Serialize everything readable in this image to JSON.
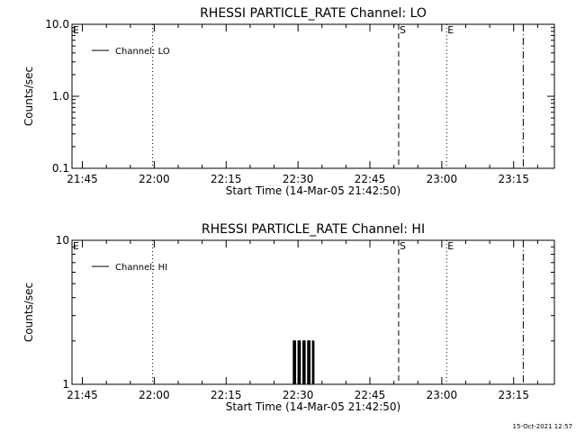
{
  "timestamp": "15-Oct-2021 12:57",
  "colors": {
    "background": "#ffffff",
    "foreground": "#000000"
  },
  "chart_data": [
    {
      "type": "line",
      "title": "RHESSI PARTICLE_RATE Channel: LO",
      "xlabel": "Start Time (14-Mar-05 21:42:50)",
      "ylabel": "Counts/sec",
      "y_scale": "log",
      "ylim": [
        0.1,
        10.0
      ],
      "xlim": [
        "21:42:50",
        "23:23:30"
      ],
      "x_ticks": [
        "21:45",
        "22:00",
        "22:15",
        "22:30",
        "22:45",
        "23:00",
        "23:15"
      ],
      "y_ticks": [
        "0.1",
        "1.0",
        "10.0"
      ],
      "legend": {
        "position": "top-left",
        "entries": [
          "Channel: LO"
        ]
      },
      "markers": [
        {
          "time": "21:42:50",
          "label": "E",
          "style": "solid"
        },
        {
          "time": "21:59:40",
          "label": "",
          "style": "dotted"
        },
        {
          "time": "22:51:00",
          "label": "S",
          "style": "dashed"
        },
        {
          "time": "23:01:00",
          "label": "E",
          "style": "dotted"
        },
        {
          "time": "23:17:00",
          "label": "",
          "style": "dashdot"
        }
      ],
      "series": [
        {
          "name": "Channel: LO",
          "x": [],
          "y": []
        }
      ]
    },
    {
      "type": "line",
      "title": "RHESSI PARTICLE_RATE Channel: HI",
      "xlabel": "Start Time (14-Mar-05 21:42:50)",
      "ylabel": "Counts/sec",
      "y_scale": "log",
      "ylim": [
        1,
        10
      ],
      "xlim": [
        "21:42:50",
        "23:23:30"
      ],
      "x_ticks": [
        "21:45",
        "22:00",
        "22:15",
        "22:30",
        "22:45",
        "23:00",
        "23:15"
      ],
      "y_ticks": [
        "1",
        "10"
      ],
      "legend": {
        "position": "top-left",
        "entries": [
          "Channel: HI"
        ]
      },
      "markers": [
        {
          "time": "21:42:50",
          "label": "E",
          "style": "solid"
        },
        {
          "time": "21:59:40",
          "label": "",
          "style": "dotted"
        },
        {
          "time": "22:51:00",
          "label": "S",
          "style": "dashed"
        },
        {
          "time": "23:01:00",
          "label": "E",
          "style": "dotted"
        },
        {
          "time": "23:17:00",
          "label": "",
          "style": "dashdot"
        }
      ],
      "series": [
        {
          "name": "Channel: HI",
          "x": [
            "22:29:00",
            "22:29:00",
            "22:29:10",
            "22:29:10",
            "22:29:20",
            "22:29:20",
            "22:29:30",
            "22:29:30",
            "22:30:00",
            "22:30:00",
            "22:30:10",
            "22:30:10",
            "22:30:20",
            "22:30:20",
            "22:30:30",
            "22:30:30",
            "22:31:00",
            "22:31:00",
            "22:31:10",
            "22:31:10",
            "22:31:20",
            "22:31:20",
            "22:31:30",
            "22:31:30",
            "22:32:00",
            "22:32:00",
            "22:32:10",
            "22:32:10",
            "22:32:20",
            "22:32:20",
            "22:32:30",
            "22:32:30",
            "22:33:00",
            "22:33:00",
            "22:33:10",
            "22:33:10",
            "22:33:20",
            "22:33:20"
          ],
          "y": [
            1,
            2,
            2,
            1,
            1,
            2,
            2,
            1,
            1,
            2,
            2,
            1,
            1,
            2,
            2,
            1,
            1,
            2,
            2,
            1,
            1,
            2,
            2,
            1,
            1,
            2,
            2,
            1,
            1,
            2,
            2,
            1,
            1,
            2,
            2,
            1,
            1,
            2
          ]
        }
      ]
    }
  ]
}
